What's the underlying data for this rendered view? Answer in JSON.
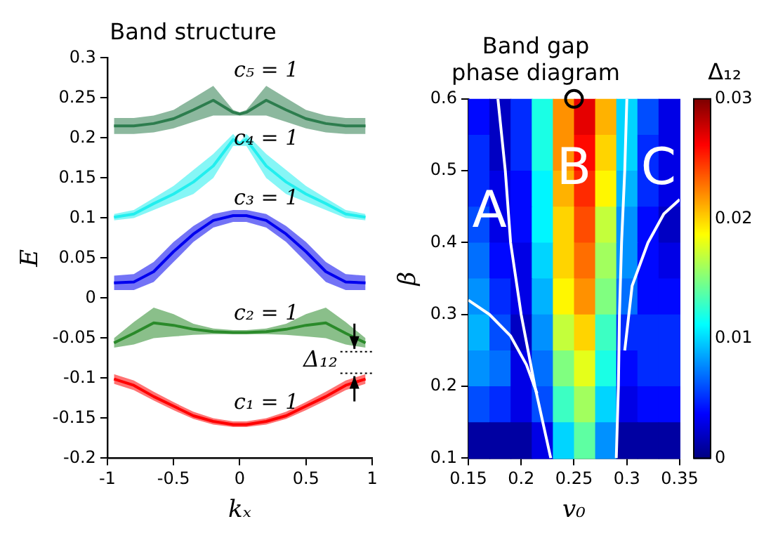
{
  "chart_data": [
    {
      "type": "line",
      "title": "Band structure",
      "xlabel": "kₓ",
      "ylabel": "E",
      "x": [
        -0.95,
        -0.8,
        -0.65,
        -0.5,
        -0.35,
        -0.2,
        -0.05,
        0,
        0.05,
        0.2,
        0.35,
        0.5,
        0.65,
        0.8,
        0.95
      ],
      "xlim": [
        -1,
        1
      ],
      "ylim": [
        -0.2,
        0.3
      ],
      "xticks": [
        -1,
        -0.5,
        0,
        0.5,
        1
      ],
      "yticks": [
        -0.2,
        -0.15,
        -0.1,
        -0.05,
        0,
        0.05,
        0.1,
        0.15,
        0.2,
        0.25,
        0.3
      ],
      "grid": false,
      "legend": false,
      "series": [
        {
          "name": "c₁ = 1",
          "color": "#ff0000",
          "values": [
            -0.101,
            -0.109,
            -0.123,
            -0.135,
            -0.147,
            -0.154,
            -0.158,
            -0.158,
            -0.158,
            -0.154,
            -0.147,
            -0.135,
            -0.123,
            -0.109,
            -0.101
          ],
          "lower": [
            -0.107,
            -0.115,
            -0.128,
            -0.14,
            -0.151,
            -0.158,
            -0.161,
            -0.161,
            -0.161,
            -0.158,
            -0.151,
            -0.14,
            -0.128,
            -0.115,
            -0.107
          ],
          "upper": [
            -0.095,
            -0.103,
            -0.117,
            -0.13,
            -0.142,
            -0.15,
            -0.154,
            -0.154,
            -0.154,
            -0.15,
            -0.142,
            -0.13,
            -0.117,
            -0.103,
            -0.095
          ]
        },
        {
          "name": "c₂ = 1",
          "color": "#2a8a2a",
          "values": [
            -0.056,
            -0.044,
            -0.031,
            -0.034,
            -0.039,
            -0.042,
            -0.043,
            -0.043,
            -0.043,
            -0.042,
            -0.039,
            -0.034,
            -0.031,
            -0.044,
            -0.056
          ],
          "lower": [
            -0.062,
            -0.058,
            -0.05,
            -0.048,
            -0.046,
            -0.045,
            -0.045,
            -0.045,
            -0.045,
            -0.045,
            -0.046,
            -0.048,
            -0.05,
            -0.058,
            -0.062
          ],
          "upper": [
            -0.05,
            -0.03,
            -0.012,
            -0.02,
            -0.032,
            -0.038,
            -0.04,
            -0.04,
            -0.04,
            -0.038,
            -0.032,
            -0.02,
            -0.012,
            -0.03,
            -0.05
          ]
        },
        {
          "name": "c₃ = 1",
          "color": "#0000ee",
          "values": [
            0.019,
            0.02,
            0.033,
            0.058,
            0.08,
            0.097,
            0.103,
            0.103,
            0.103,
            0.097,
            0.08,
            0.058,
            0.033,
            0.02,
            0.019
          ],
          "lower": [
            0.01,
            0.01,
            0.02,
            0.045,
            0.07,
            0.088,
            0.095,
            0.095,
            0.095,
            0.088,
            0.07,
            0.045,
            0.02,
            0.01,
            0.01
          ],
          "upper": [
            0.028,
            0.03,
            0.045,
            0.07,
            0.09,
            0.105,
            0.11,
            0.11,
            0.11,
            0.105,
            0.09,
            0.07,
            0.045,
            0.03,
            0.028
          ]
        },
        {
          "name": "c₄ = 1",
          "color": "#22eeee",
          "values": [
            0.101,
            0.105,
            0.118,
            0.13,
            0.145,
            0.165,
            0.198,
            0.193,
            0.198,
            0.165,
            0.145,
            0.13,
            0.118,
            0.105,
            0.101
          ],
          "lower": [
            0.097,
            0.1,
            0.11,
            0.12,
            0.13,
            0.15,
            0.19,
            0.19,
            0.19,
            0.15,
            0.13,
            0.12,
            0.11,
            0.1,
            0.097
          ],
          "upper": [
            0.105,
            0.11,
            0.125,
            0.14,
            0.16,
            0.18,
            0.205,
            0.195,
            0.205,
            0.18,
            0.16,
            0.14,
            0.125,
            0.11,
            0.105
          ]
        },
        {
          "name": "c₅ = 1",
          "color": "#2e7d4f",
          "values": [
            0.215,
            0.215,
            0.218,
            0.224,
            0.235,
            0.247,
            0.232,
            0.23,
            0.232,
            0.247,
            0.235,
            0.224,
            0.218,
            0.215,
            0.215
          ],
          "lower": [
            0.205,
            0.205,
            0.207,
            0.212,
            0.22,
            0.228,
            0.228,
            0.228,
            0.228,
            0.228,
            0.22,
            0.212,
            0.207,
            0.205,
            0.205
          ],
          "upper": [
            0.225,
            0.225,
            0.228,
            0.235,
            0.25,
            0.265,
            0.235,
            0.232,
            0.235,
            0.265,
            0.25,
            0.235,
            0.228,
            0.225,
            0.225
          ]
        }
      ],
      "ref_lines": [
        {
          "axis": "y",
          "value": -0.067,
          "color": "#000000",
          "line_style": "dotted"
        },
        {
          "axis": "y",
          "value": -0.094,
          "label": "Δ₁₂",
          "color": "#000000",
          "line_style": "dotted"
        }
      ]
    },
    {
      "type": "heatmap",
      "title": "Band gap\nphase diagram",
      "xlabel": "v₀",
      "ylabel": "β",
      "clabel": "Δ₁₂",
      "x": [
        0.16,
        0.18,
        0.2,
        0.22,
        0.24,
        0.26,
        0.28,
        0.3,
        0.32,
        0.34
      ],
      "xlim": [
        0.15,
        0.35
      ],
      "ylim": [
        0.1,
        0.6
      ],
      "xticks": [
        0.15,
        0.2,
        0.25,
        0.3,
        0.35
      ],
      "yticks": [
        0.1,
        0.2,
        0.3,
        0.4,
        0.5,
        0.6
      ],
      "clim": [
        0,
        0.03
      ],
      "cticks": [
        0,
        0.01,
        0.02,
        0.03
      ],
      "grid": false,
      "legend": false,
      "cells": [
        [
          0.004,
          0.002,
          0.005,
          0.012,
          0.022,
          0.027,
          0.021,
          0.01,
          0.006,
          0.003
        ],
        [
          0.005,
          0.002,
          0.005,
          0.012,
          0.022,
          0.026,
          0.02,
          0.01,
          0.005,
          0.003
        ],
        [
          0.005,
          0.003,
          0.004,
          0.011,
          0.021,
          0.025,
          0.019,
          0.009,
          0.005,
          0.003
        ],
        [
          0.006,
          0.003,
          0.004,
          0.011,
          0.02,
          0.024,
          0.017,
          0.008,
          0.004,
          0.002
        ],
        [
          0.007,
          0.004,
          0.003,
          0.01,
          0.02,
          0.023,
          0.016,
          0.008,
          0.004,
          0.003
        ],
        [
          0.008,
          0.005,
          0.003,
          0.009,
          0.019,
          0.022,
          0.015,
          0.007,
          0.004,
          0.004
        ],
        [
          0.009,
          0.006,
          0.002,
          0.008,
          0.017,
          0.02,
          0.013,
          0.005,
          0.005,
          0.005
        ],
        [
          0.008,
          0.007,
          0.003,
          0.007,
          0.015,
          0.018,
          0.012,
          0.004,
          0.005,
          0.005
        ],
        [
          0.006,
          0.005,
          0.003,
          0.006,
          0.013,
          0.016,
          0.01,
          0.003,
          0.004,
          0.004
        ],
        [
          0.001,
          0.001,
          0.001,
          0.003,
          0.01,
          0.014,
          0.008,
          0.001,
          0.001,
          0.001
        ]
      ],
      "series": [
        {
          "type": "line",
          "x": [
            0.178,
            0.185,
            0.19,
            0.2,
            0.213,
            0.228
          ],
          "values": [
            0.6,
            0.5,
            0.4,
            0.3,
            0.2,
            0.1
          ],
          "color": "#ffffff"
        },
        {
          "type": "line",
          "x": [
            0.15,
            0.17,
            0.19,
            0.205,
            0.215
          ],
          "values": [
            0.32,
            0.3,
            0.27,
            0.23,
            0.19
          ],
          "color": "#ffffff"
        },
        {
          "type": "line",
          "x": [
            0.3,
            0.298,
            0.295,
            0.293,
            0.292,
            0.29
          ],
          "values": [
            0.6,
            0.5,
            0.4,
            0.3,
            0.2,
            0.1
          ],
          "color": "#ffffff"
        },
        {
          "type": "line",
          "x": [
            0.298,
            0.305,
            0.32,
            0.335,
            0.35
          ],
          "values": [
            0.25,
            0.34,
            0.4,
            0.44,
            0.46
          ],
          "color": "#ffffff"
        },
        {
          "type": "scatter",
          "x": [
            0.25
          ],
          "values": [
            0.6
          ],
          "color": "#000000",
          "marker": "circle"
        }
      ],
      "annotations": [
        "A",
        "B",
        "C"
      ]
    }
  ]
}
